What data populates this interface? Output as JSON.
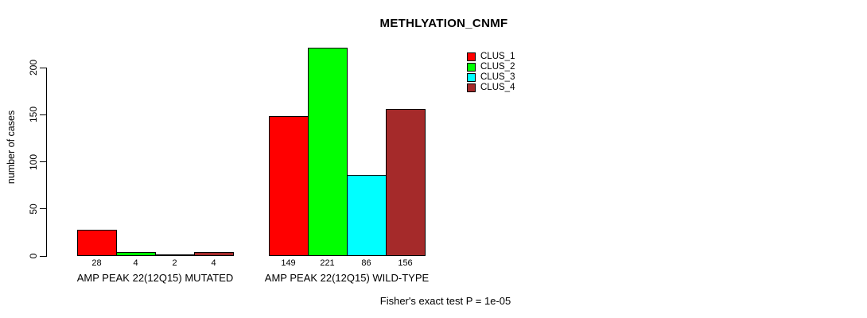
{
  "chart_data": {
    "type": "bar",
    "title": "METHLYATION_CNMF",
    "ylabel": "number of cases",
    "xlabel": "",
    "categories": [
      "AMP PEAK 22(12Q15) MUTATED",
      "AMP PEAK 22(12Q15) WILD-TYPE"
    ],
    "series": [
      {
        "name": "CLUS_1",
        "color": "#FF0000",
        "values": [
          28,
          149
        ]
      },
      {
        "name": "CLUS_2",
        "color": "#00FF00",
        "values": [
          4,
          221
        ]
      },
      {
        "name": "CLUS_3",
        "color": "#00FFFF",
        "values": [
          2,
          86
        ]
      },
      {
        "name": "CLUS_4",
        "color": "#A52A2A",
        "values": [
          4,
          156
        ]
      }
    ],
    "y_ticks": [
      0,
      50,
      100,
      150,
      200
    ],
    "ylim": [
      0,
      225
    ],
    "grid": false,
    "legend_position": "top-right",
    "bar_value_labels": true,
    "annotation": "Fisher's exact test P = 1e-05"
  }
}
